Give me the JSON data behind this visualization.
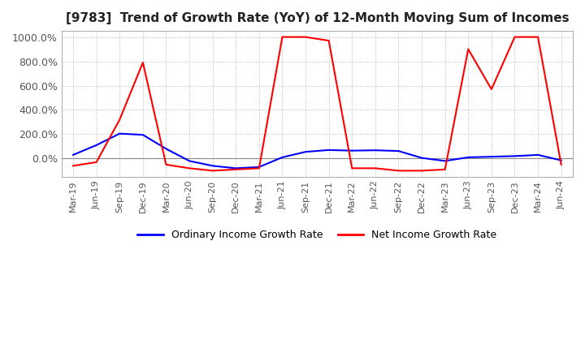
{
  "title": "[9783]  Trend of Growth Rate (YoY) of 12-Month Moving Sum of Incomes",
  "legend": [
    "Ordinary Income Growth Rate",
    "Net Income Growth Rate"
  ],
  "line_colors": [
    "#0000ff",
    "#ff0000"
  ],
  "ylim": [
    -150,
    1050
  ],
  "yticks": [
    0,
    200,
    400,
    600,
    800,
    1000
  ],
  "ytick_labels": [
    "0.0%",
    "200.0%",
    "400.0%",
    "600.0%",
    "800.0%",
    "1000.0%"
  ],
  "xtick_labels": [
    "Mar-19",
    "Jun-19",
    "Sep-19",
    "Dec-19",
    "Mar-20",
    "Jun-20",
    "Sep-20",
    "Dec-20",
    "Mar-21",
    "Jun-21",
    "Sep-21",
    "Dec-21",
    "Mar-22",
    "Jun-22",
    "Sep-22",
    "Dec-22",
    "Mar-23",
    "Jun-23",
    "Sep-23",
    "Dec-23",
    "Mar-24",
    "Jun-24"
  ],
  "ordinary_income_growth": [
    30,
    110,
    205,
    195,
    80,
    -20,
    -60,
    -80,
    -70,
    10,
    55,
    70,
    65,
    68,
    62,
    5,
    -20,
    10,
    15,
    20,
    30,
    -15
  ],
  "net_income_growth": [
    -60,
    -30,
    320,
    790,
    -50,
    -80,
    -100,
    -90,
    -80,
    1000,
    1000,
    970,
    -80,
    -80,
    -100,
    -100,
    -90,
    900,
    570,
    1000,
    1000,
    -50
  ]
}
